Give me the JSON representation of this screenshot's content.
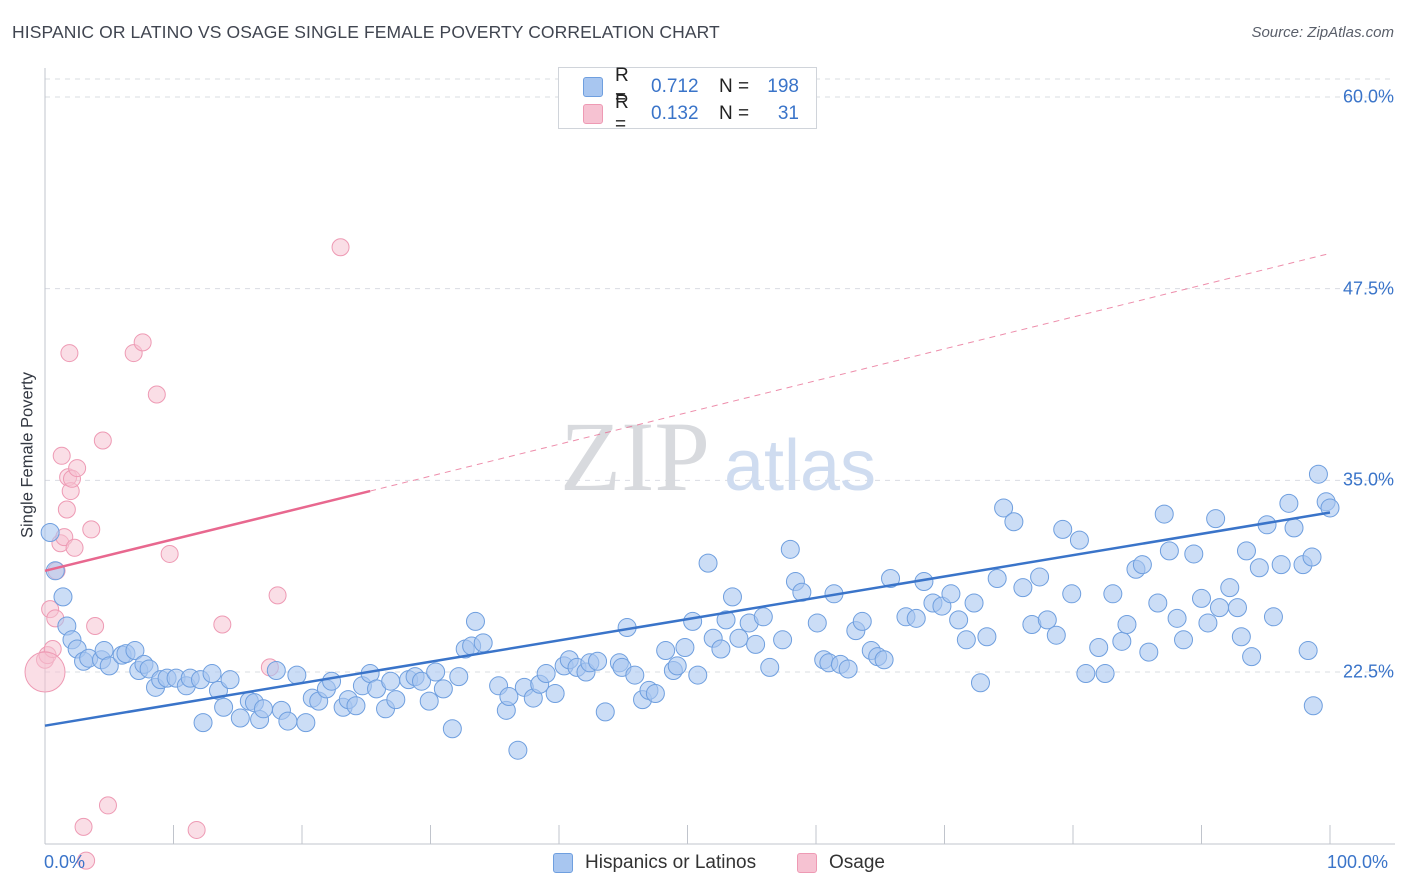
{
  "title": "HISPANIC OR LATINO VS OSAGE SINGLE FEMALE POVERTY CORRELATION CHART",
  "source": "Source: ZipAtlas.com",
  "watermark": {
    "zip": "ZIP",
    "atlas": "atlas"
  },
  "colors": {
    "blue": "#3a74c9",
    "blue_fill": "#a8c6f0",
    "blue_stroke": "#6f9fdf",
    "pink": "#e8688f",
    "pink_fill": "#f6c2d2",
    "pink_stroke": "#ee9ab4",
    "grid": "#d9dce2"
  },
  "legend_top": [
    {
      "r_label": "R =",
      "r_value": "0.712",
      "n_label": "N =",
      "n_value": "198"
    },
    {
      "r_label": "R =",
      "r_value": "0.132",
      "n_label": "N =",
      "n_value": "31"
    }
  ],
  "legend_bottom": [
    "Hispanics or Latinos",
    "Osage"
  ],
  "chart_data": {
    "type": "scatter",
    "title": "HISPANIC OR LATINO VS OSAGE SINGLE FEMALE POVERTY CORRELATION CHART",
    "xlabel": "",
    "ylabel": "Single Female Poverty",
    "xlim": [
      0,
      100
    ],
    "ylim": [
      10,
      61.5
    ],
    "x_tick_labels": [
      "0.0%",
      "100.0%"
    ],
    "y_ticks": [
      22.5,
      35.0,
      47.5,
      60.0
    ],
    "y_tick_labels": [
      "22.5%",
      "35.0%",
      "47.5%",
      "60.0%"
    ],
    "grid": "horizontal dashed",
    "legend_placement": "top-center and bottom",
    "series": [
      {
        "name": "Hispanics or Latinos",
        "R": 0.712,
        "N": 198,
        "trend": {
          "x": [
            0,
            100
          ],
          "y": [
            19.0,
            32.9
          ],
          "style": "solid"
        },
        "points": [
          [
            0.4,
            31.6
          ],
          [
            0.8,
            29.1
          ],
          [
            1.4,
            27.4
          ],
          [
            1.7,
            25.5
          ],
          [
            2.1,
            24.6
          ],
          [
            2.5,
            24.0
          ],
          [
            3.0,
            23.2
          ],
          [
            3.4,
            23.4
          ],
          [
            4.4,
            23.3
          ],
          [
            4.6,
            23.9
          ],
          [
            5.0,
            22.9
          ],
          [
            6.0,
            23.6
          ],
          [
            6.3,
            23.7
          ],
          [
            7.0,
            23.9
          ],
          [
            7.3,
            22.6
          ],
          [
            7.7,
            23.0
          ],
          [
            8.1,
            22.7
          ],
          [
            8.6,
            21.5
          ],
          [
            9.0,
            22.0
          ],
          [
            9.5,
            22.1
          ],
          [
            10.2,
            22.1
          ],
          [
            11.0,
            21.6
          ],
          [
            11.3,
            22.1
          ],
          [
            12.1,
            22.0
          ],
          [
            12.3,
            19.2
          ],
          [
            13.0,
            22.4
          ],
          [
            13.5,
            21.3
          ],
          [
            13.9,
            20.2
          ],
          [
            14.4,
            22.0
          ],
          [
            15.2,
            19.5
          ],
          [
            15.9,
            20.6
          ],
          [
            16.3,
            20.5
          ],
          [
            16.7,
            19.4
          ],
          [
            17.0,
            20.1
          ],
          [
            18.0,
            22.6
          ],
          [
            18.4,
            20.0
          ],
          [
            18.9,
            19.3
          ],
          [
            19.6,
            22.3
          ],
          [
            20.3,
            19.2
          ],
          [
            20.8,
            20.8
          ],
          [
            21.3,
            20.6
          ],
          [
            21.9,
            21.4
          ],
          [
            22.3,
            21.9
          ],
          [
            23.2,
            20.2
          ],
          [
            23.6,
            20.7
          ],
          [
            24.2,
            20.3
          ],
          [
            24.7,
            21.6
          ],
          [
            25.3,
            22.4
          ],
          [
            25.8,
            21.4
          ],
          [
            26.5,
            20.1
          ],
          [
            26.9,
            21.9
          ],
          [
            27.3,
            20.7
          ],
          [
            28.3,
            22.0
          ],
          [
            28.8,
            22.2
          ],
          [
            29.3,
            21.9
          ],
          [
            29.9,
            20.6
          ],
          [
            30.4,
            22.5
          ],
          [
            31.0,
            21.4
          ],
          [
            31.7,
            18.8
          ],
          [
            32.2,
            22.2
          ],
          [
            32.7,
            24.0
          ],
          [
            33.2,
            24.2
          ],
          [
            33.5,
            25.8
          ],
          [
            34.1,
            24.4
          ],
          [
            35.3,
            21.6
          ],
          [
            35.9,
            20.0
          ],
          [
            36.1,
            20.9
          ],
          [
            36.8,
            17.4
          ],
          [
            37.3,
            21.5
          ],
          [
            38.0,
            20.8
          ],
          [
            38.5,
            21.7
          ],
          [
            39.0,
            22.4
          ],
          [
            39.7,
            21.1
          ],
          [
            40.4,
            22.9
          ],
          [
            40.8,
            23.3
          ],
          [
            41.4,
            22.8
          ],
          [
            42.1,
            22.5
          ],
          [
            42.4,
            23.1
          ],
          [
            43.0,
            23.2
          ],
          [
            43.6,
            19.9
          ],
          [
            44.7,
            23.1
          ],
          [
            44.9,
            22.8
          ],
          [
            45.3,
            25.4
          ],
          [
            45.9,
            22.3
          ],
          [
            46.5,
            20.7
          ],
          [
            47.0,
            21.3
          ],
          [
            47.5,
            21.1
          ],
          [
            48.3,
            23.9
          ],
          [
            48.9,
            22.6
          ],
          [
            49.2,
            22.9
          ],
          [
            49.8,
            24.1
          ],
          [
            50.4,
            25.8
          ],
          [
            50.8,
            22.3
          ],
          [
            51.6,
            29.6
          ],
          [
            52.0,
            24.7
          ],
          [
            52.6,
            24.0
          ],
          [
            53.0,
            25.9
          ],
          [
            53.5,
            27.4
          ],
          [
            54.0,
            24.7
          ],
          [
            54.8,
            25.7
          ],
          [
            55.3,
            24.3
          ],
          [
            55.9,
            26.1
          ],
          [
            56.4,
            22.8
          ],
          [
            57.4,
            24.6
          ],
          [
            58.0,
            30.5
          ],
          [
            58.4,
            28.4
          ],
          [
            58.9,
            27.7
          ],
          [
            60.1,
            25.7
          ],
          [
            60.6,
            23.3
          ],
          [
            61.0,
            23.1
          ],
          [
            61.4,
            27.6
          ],
          [
            61.9,
            23.0
          ],
          [
            62.5,
            22.7
          ],
          [
            63.1,
            25.2
          ],
          [
            63.6,
            25.8
          ],
          [
            64.3,
            23.9
          ],
          [
            64.8,
            23.5
          ],
          [
            65.3,
            23.3
          ],
          [
            65.8,
            28.6
          ],
          [
            67.0,
            26.1
          ],
          [
            67.8,
            26.0
          ],
          [
            68.4,
            28.4
          ],
          [
            69.1,
            27.0
          ],
          [
            69.8,
            26.8
          ],
          [
            70.5,
            27.6
          ],
          [
            71.1,
            25.9
          ],
          [
            71.7,
            24.6
          ],
          [
            72.3,
            27.0
          ],
          [
            72.8,
            21.8
          ],
          [
            73.3,
            24.8
          ],
          [
            74.1,
            28.6
          ],
          [
            74.6,
            33.2
          ],
          [
            75.4,
            32.3
          ],
          [
            76.1,
            28.0
          ],
          [
            76.8,
            25.6
          ],
          [
            77.4,
            28.7
          ],
          [
            78.0,
            25.9
          ],
          [
            78.7,
            24.9
          ],
          [
            79.2,
            31.8
          ],
          [
            79.9,
            27.6
          ],
          [
            80.5,
            31.1
          ],
          [
            81.0,
            22.4
          ],
          [
            82.0,
            24.1
          ],
          [
            82.5,
            22.4
          ],
          [
            83.1,
            27.6
          ],
          [
            83.8,
            24.5
          ],
          [
            84.2,
            25.6
          ],
          [
            84.9,
            29.2
          ],
          [
            85.4,
            29.5
          ],
          [
            85.9,
            23.8
          ],
          [
            86.6,
            27.0
          ],
          [
            87.1,
            32.8
          ],
          [
            87.5,
            30.4
          ],
          [
            88.1,
            26.0
          ],
          [
            88.6,
            24.6
          ],
          [
            89.4,
            30.2
          ],
          [
            90.0,
            27.3
          ],
          [
            90.5,
            25.7
          ],
          [
            91.1,
            32.5
          ],
          [
            91.4,
            26.7
          ],
          [
            92.2,
            28.0
          ],
          [
            92.8,
            26.7
          ],
          [
            93.1,
            24.8
          ],
          [
            93.5,
            30.4
          ],
          [
            93.9,
            23.5
          ],
          [
            94.5,
            29.3
          ],
          [
            95.1,
            32.1
          ],
          [
            95.6,
            26.1
          ],
          [
            96.2,
            29.5
          ],
          [
            96.8,
            33.5
          ],
          [
            97.2,
            31.9
          ],
          [
            97.9,
            29.5
          ],
          [
            98.3,
            23.9
          ],
          [
            98.6,
            30.0
          ],
          [
            98.7,
            20.3
          ],
          [
            99.1,
            35.4
          ],
          [
            99.7,
            33.6
          ],
          [
            100.0,
            33.2
          ]
        ]
      },
      {
        "name": "Osage",
        "R": 0.132,
        "N": 31,
        "trend": {
          "x": [
            0,
            25.3,
            100
          ],
          "y": [
            29.1,
            34.3,
            49.8
          ],
          "style": "solid then dashed"
        },
        "points": [
          [
            0.0,
            23.3
          ],
          [
            0.2,
            23.6
          ],
          [
            0.4,
            26.6
          ],
          [
            0.6,
            24.0
          ],
          [
            0.8,
            26.0
          ],
          [
            0.9,
            29.1
          ],
          [
            1.2,
            30.9
          ],
          [
            1.3,
            36.6
          ],
          [
            1.5,
            31.3
          ],
          [
            1.7,
            33.1
          ],
          [
            1.8,
            35.2
          ],
          [
            1.9,
            43.3
          ],
          [
            2.0,
            34.3
          ],
          [
            2.1,
            35.1
          ],
          [
            2.3,
            30.6
          ],
          [
            2.5,
            35.8
          ],
          [
            3.0,
            12.4
          ],
          [
            3.2,
            10.2
          ],
          [
            3.6,
            31.8
          ],
          [
            3.9,
            25.5
          ],
          [
            4.5,
            37.6
          ],
          [
            4.9,
            13.8
          ],
          [
            6.9,
            43.3
          ],
          [
            7.6,
            44.0
          ],
          [
            8.7,
            40.6
          ],
          [
            9.7,
            30.2
          ],
          [
            11.8,
            12.2
          ],
          [
            13.8,
            25.6
          ],
          [
            17.5,
            22.8
          ],
          [
            18.1,
            27.5
          ],
          [
            23.0,
            50.2
          ]
        ]
      }
    ]
  }
}
